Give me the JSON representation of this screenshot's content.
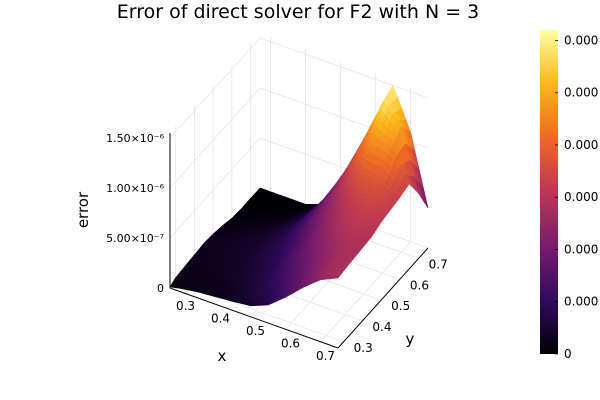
{
  "chart_data": {
    "type": "surface",
    "title": "Error of direct solver for F2 with N = 3",
    "xlabel": "x",
    "ylabel": "y",
    "zlabel": "error",
    "x_ticks": [
      "0.3",
      "0.4",
      "0.5",
      "0.6",
      "0.7"
    ],
    "y_ticks": [
      "0.3",
      "0.4",
      "0.5",
      "0.6",
      "0.7"
    ],
    "z_ticks": [
      "0",
      "5.00×10⁻⁷",
      "1.00×10⁻⁶",
      "1.50×10⁻⁶"
    ],
    "xlim": [
      0.27,
      0.75
    ],
    "ylim": [
      0.27,
      0.75
    ],
    "zlim": [
      0,
      1.55e-06
    ],
    "x": [
      0.27,
      0.3,
      0.35,
      0.4,
      0.45,
      0.5,
      0.55,
      0.6,
      0.65,
      0.7,
      0.75
    ],
    "y": [
      0.27,
      0.3,
      0.35,
      0.4,
      0.45,
      0.5,
      0.55,
      0.6,
      0.65,
      0.7,
      0.75
    ],
    "z": [
      [
        1e-08,
        3.4e-08,
        6e-08,
        7.5e-08,
        9e-08,
        1.1e-07,
        1.8e-07,
        3.2e-07,
        4.8e-07,
        6.2e-07,
        7e-07
      ],
      [
        4e-08,
        5e-08,
        5.5e-08,
        6.5e-08,
        1e-07,
        1.6e-07,
        2.5e-07,
        3.7e-07,
        5.2e-07,
        6.5e-07,
        7.1e-07
      ],
      [
        5e-08,
        6e-08,
        7e-08,
        9e-08,
        1.3e-07,
        2e-07,
        3.1e-07,
        4.3e-07,
        5.7e-07,
        6.8e-07,
        7.2e-07
      ],
      [
        6e-08,
        7e-08,
        8e-08,
        1e-07,
        1.5e-07,
        2.3e-07,
        3.6e-07,
        5e-07,
        6.1e-07,
        7e-07,
        7.3e-07
      ],
      [
        7e-08,
        8e-08,
        9e-08,
        1.1e-07,
        1.7e-07,
        2.6e-07,
        4.1e-07,
        5.6e-07,
        6.9e-07,
        7.7e-07,
        7.4e-07
      ],
      [
        6e-08,
        7e-08,
        9e-08,
        1.2e-07,
        1.9e-07,
        3e-07,
        4.6e-07,
        6.2e-07,
        7.6e-07,
        8.2e-07,
        7.8e-07
      ],
      [
        4e-08,
        5e-08,
        7e-08,
        1.1e-07,
        1.9e-07,
        3.3e-07,
        5.2e-07,
        7e-07,
        8.5e-07,
        8.8e-07,
        8e-07
      ],
      [
        1e-08,
        3e-08,
        5e-08,
        9e-08,
        1.8e-07,
        3.5e-07,
        5.8e-07,
        8.2e-07,
        9.8e-07,
        9.6e-07,
        8.2e-07
      ],
      [
        0,
        1e-08,
        2e-08,
        5e-08,
        1.5e-07,
        3.6e-07,
        6.4e-07,
        9.6e-07,
        1.2e-06,
        1.15e-06,
        8.5e-07
      ],
      [
        0,
        0,
        1e-08,
        2e-08,
        1.1e-07,
        3.5e-07,
        6.8e-07,
        1.05e-06,
        1.45e-06,
        1.25e-06,
        6.5e-07
      ],
      [
        0,
        0,
        0,
        0,
        6e-08,
        3.2e-07,
        6.6e-07,
        1.05e-06,
        1.5e-06,
        1.1e-06,
        4e-07
      ]
    ],
    "colormap": [
      "#000004",
      "#320a5e",
      "#781c6d",
      "#bc3754",
      "#ed6925",
      "#fbb61a",
      "#fcffa4"
    ],
    "colorbar_ticks": [
      "0",
      "0.000",
      "0.000",
      "0.000",
      "0.000",
      "0.000",
      "0.000"
    ],
    "colorbar_range": [
      0,
      1.55e-06
    ],
    "grid": true,
    "legend": false
  }
}
